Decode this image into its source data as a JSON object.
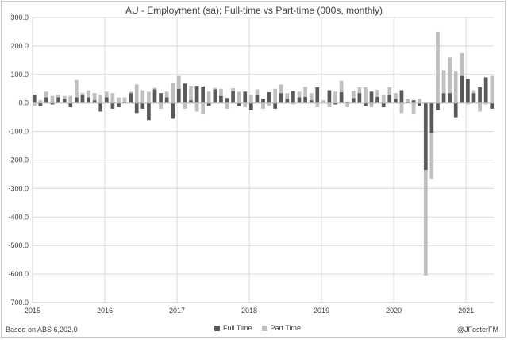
{
  "chart_data": {
    "type": "bar",
    "stacked": true,
    "title": "AU - Employment (sa); Full-time vs Part-time (000s, monthly)",
    "xlabel": "",
    "ylabel": "",
    "ylim": [
      -700,
      300
    ],
    "yticks": [
      "300.0",
      "200.0",
      "100.0",
      "0.0",
      "-100.0",
      "-200.0",
      "-300.0",
      "-400.0",
      "-500.0",
      "-600.0",
      "-700.0"
    ],
    "xticks": [
      "2015",
      "2016",
      "2017",
      "2018",
      "2019",
      "2020",
      "2021"
    ],
    "grid": true,
    "legend": "bottom",
    "series": [
      {
        "name": "Full Time",
        "color": "#595959",
        "values": [
          30,
          -12,
          20,
          -5,
          20,
          15,
          -15,
          20,
          30,
          20,
          10,
          -30,
          20,
          -20,
          -15,
          5,
          35,
          -35,
          -20,
          -60,
          48,
          35,
          20,
          -55,
          50,
          68,
          10,
          60,
          58,
          -10,
          48,
          25,
          18,
          42,
          -10,
          40,
          -25,
          28,
          15,
          38,
          -20,
          35,
          15,
          42,
          20,
          22,
          10,
          55,
          0,
          45,
          -5,
          38,
          5,
          18,
          35,
          -10,
          40,
          22,
          -15,
          30,
          15,
          45,
          5,
          10,
          -10,
          -235,
          -105,
          -25,
          35,
          35,
          -50,
          95,
          85,
          35,
          55,
          90,
          -20
        ]
      },
      {
        "name": "Part Time",
        "color": "#bfbfbf",
        "values": [
          -10,
          10,
          20,
          25,
          10,
          10,
          25,
          60,
          5,
          25,
          25,
          30,
          20,
          35,
          20,
          15,
          5,
          65,
          45,
          40,
          5,
          -20,
          20,
          70,
          45,
          -20,
          50,
          -30,
          -40,
          40,
          5,
          25,
          -20,
          10,
          40,
          -15,
          30,
          20,
          -20,
          -10,
          50,
          30,
          20,
          -5,
          20,
          35,
          25,
          -15,
          10,
          -15,
          40,
          40,
          -15,
          25,
          20,
          55,
          -15,
          25,
          30,
          25,
          20,
          -35,
          10,
          -40,
          15,
          -370,
          -160,
          250,
          80,
          125,
          110,
          80,
          -5,
          10,
          -30,
          -5,
          95
        ]
      }
    ]
  },
  "footer": {
    "source": "Based on ABS 6,202.0",
    "credit": "@JFosterFM"
  },
  "colors": {
    "full_time": "#595959",
    "part_time": "#bfbfbf",
    "grid": "#d9d9d9"
  }
}
